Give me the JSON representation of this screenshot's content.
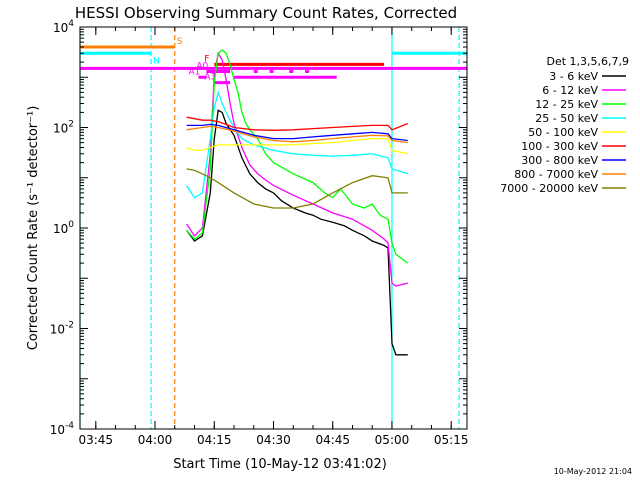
{
  "chart_data": {
    "type": "line",
    "title": "HESSI Observing Summary Count Rates, Corrected",
    "xlabel": "Start Time (10-May-12 03:41:02)",
    "ylabel": "Corrected Count Rate (s⁻¹ detector⁻¹)",
    "y_scale": "log",
    "ylim": [
      0.0001,
      10000
    ],
    "xlim": [
      "03:41",
      "05:19"
    ],
    "x_ticks": [
      "03:45",
      "04:00",
      "04:15",
      "04:30",
      "04:45",
      "05:00",
      "05:15"
    ],
    "y_ticks": [
      {
        "value": 0.0001,
        "base": "10",
        "exp": "-4"
      },
      {
        "value": 0.01,
        "base": "10",
        "exp": "-2"
      },
      {
        "value": 1,
        "base": "10",
        "exp": "0"
      },
      {
        "value": 100,
        "base": "10",
        "exp": "2"
      },
      {
        "value": 10000,
        "base": "10",
        "exp": "4"
      }
    ],
    "grid": false,
    "legend_position": "right",
    "legend_title": "Det 1,3,5,6,7,9",
    "series": [
      {
        "name": "3 - 6 keV",
        "color": "#000000",
        "points": [
          [
            "04:08",
            0.9
          ],
          [
            "04:10",
            0.55
          ],
          [
            "04:12",
            0.7
          ],
          [
            "04:14",
            5
          ],
          [
            "04:15",
            60
          ],
          [
            "04:16",
            220
          ],
          [
            "04:17",
            200
          ],
          [
            "04:18",
            120
          ],
          [
            "04:20",
            70
          ],
          [
            "04:22",
            25
          ],
          [
            "04:24",
            12
          ],
          [
            "04:26",
            8
          ],
          [
            "04:28",
            6
          ],
          [
            "04:30",
            5
          ],
          [
            "04:32",
            3.5
          ],
          [
            "04:35",
            2.5
          ],
          [
            "04:38",
            2
          ],
          [
            "04:40",
            1.8
          ],
          [
            "04:42",
            1.5
          ],
          [
            "04:45",
            1.3
          ],
          [
            "04:48",
            1.1
          ],
          [
            "04:50",
            0.9
          ],
          [
            "04:53",
            0.7
          ],
          [
            "04:55",
            0.55
          ],
          [
            "04:58",
            0.45
          ],
          [
            "04:59",
            0.4
          ],
          [
            "05:00",
            0.005
          ],
          [
            "05:01",
            0.003
          ],
          [
            "05:04",
            0.003
          ]
        ]
      },
      {
        "name": "6 - 12 keV",
        "color": "#ff00ff",
        "points": [
          [
            "04:08",
            1.2
          ],
          [
            "04:10",
            0.7
          ],
          [
            "04:12",
            1
          ],
          [
            "04:14",
            30
          ],
          [
            "04:15",
            1200
          ],
          [
            "04:16",
            3000
          ],
          [
            "04:17",
            2200
          ],
          [
            "04:18",
            900
          ],
          [
            "04:19",
            300
          ],
          [
            "04:20",
            120
          ],
          [
            "04:22",
            40
          ],
          [
            "04:24",
            18
          ],
          [
            "04:26",
            12
          ],
          [
            "04:28",
            9
          ],
          [
            "04:30",
            7
          ],
          [
            "04:35",
            4.5
          ],
          [
            "04:40",
            3
          ],
          [
            "04:45",
            2
          ],
          [
            "04:50",
            1.5
          ],
          [
            "04:55",
            0.9
          ],
          [
            "04:58",
            0.6
          ],
          [
            "04:59",
            0.5
          ],
          [
            "05:00",
            0.08
          ],
          [
            "05:01",
            0.07
          ],
          [
            "05:04",
            0.08
          ]
        ]
      },
      {
        "name": "12 - 25 keV",
        "color": "#00ff00",
        "points": [
          [
            "04:08",
            0.9
          ],
          [
            "04:10",
            0.6
          ],
          [
            "04:12",
            0.8
          ],
          [
            "04:14",
            15
          ],
          [
            "04:15",
            800
          ],
          [
            "04:16",
            3000
          ],
          [
            "04:17",
            3500
          ],
          [
            "04:18",
            3000
          ],
          [
            "04:19",
            1800
          ],
          [
            "04:20",
            900
          ],
          [
            "04:21",
            500
          ],
          [
            "04:22",
            200
          ],
          [
            "04:23",
            120
          ],
          [
            "04:24",
            90
          ],
          [
            "04:26",
            60
          ],
          [
            "04:28",
            30
          ],
          [
            "04:30",
            20
          ],
          [
            "04:35",
            12
          ],
          [
            "04:40",
            8
          ],
          [
            "04:43",
            5
          ],
          [
            "04:45",
            4
          ],
          [
            "04:47",
            6
          ],
          [
            "04:50",
            3
          ],
          [
            "04:53",
            2.5
          ],
          [
            "04:55",
            3
          ],
          [
            "04:57",
            1.8
          ],
          [
            "04:59",
            1.5
          ],
          [
            "05:00",
            0.5
          ],
          [
            "05:01",
            0.3
          ],
          [
            "05:04",
            0.2
          ]
        ]
      },
      {
        "name": "25 - 50 keV",
        "color": "#00ffff",
        "points": [
          [
            "04:08",
            7
          ],
          [
            "04:10",
            4
          ],
          [
            "04:12",
            5
          ],
          [
            "04:14",
            60
          ],
          [
            "04:15",
            250
          ],
          [
            "04:16",
            500
          ],
          [
            "04:17",
            300
          ],
          [
            "04:18",
            200
          ],
          [
            "04:20",
            100
          ],
          [
            "04:22",
            60
          ],
          [
            "04:25",
            45
          ],
          [
            "04:30",
            35
          ],
          [
            "04:35",
            30
          ],
          [
            "04:40",
            28
          ],
          [
            "04:45",
            27
          ],
          [
            "04:50",
            28
          ],
          [
            "04:55",
            30
          ],
          [
            "04:59",
            25
          ],
          [
            "05:00",
            15
          ],
          [
            "05:04",
            12
          ]
        ]
      },
      {
        "name": "50 - 100 keV",
        "color": "#ffff00",
        "points": [
          [
            "04:08",
            40
          ],
          [
            "04:10",
            35
          ],
          [
            "04:12",
            35
          ],
          [
            "04:14",
            40
          ],
          [
            "04:16",
            45
          ],
          [
            "04:20",
            45
          ],
          [
            "04:25",
            45
          ],
          [
            "04:30",
            45
          ],
          [
            "04:35",
            45
          ],
          [
            "04:40",
            48
          ],
          [
            "04:45",
            50
          ],
          [
            "04:50",
            55
          ],
          [
            "04:55",
            60
          ],
          [
            "04:59",
            60
          ],
          [
            "05:00",
            35
          ],
          [
            "05:04",
            30
          ]
        ]
      },
      {
        "name": "100 - 300 keV",
        "color": "#ff0000",
        "points": [
          [
            "04:08",
            160
          ],
          [
            "04:10",
            150
          ],
          [
            "04:12",
            140
          ],
          [
            "04:14",
            140
          ],
          [
            "04:16",
            130
          ],
          [
            "04:18",
            115
          ],
          [
            "04:20",
            100
          ],
          [
            "04:25",
            90
          ],
          [
            "04:30",
            88
          ],
          [
            "04:35",
            90
          ],
          [
            "04:40",
            95
          ],
          [
            "04:45",
            100
          ],
          [
            "04:50",
            105
          ],
          [
            "04:55",
            110
          ],
          [
            "04:59",
            110
          ],
          [
            "05:00",
            90
          ],
          [
            "05:04",
            120
          ]
        ]
      },
      {
        "name": "300 - 800 keV",
        "color": "#0000ff",
        "points": [
          [
            "04:08",
            110
          ],
          [
            "04:10",
            110
          ],
          [
            "04:12",
            110
          ],
          [
            "04:14",
            115
          ],
          [
            "04:16",
            110
          ],
          [
            "04:20",
            90
          ],
          [
            "04:25",
            70
          ],
          [
            "04:30",
            60
          ],
          [
            "04:35",
            60
          ],
          [
            "04:40",
            65
          ],
          [
            "04:45",
            70
          ],
          [
            "04:50",
            75
          ],
          [
            "04:55",
            80
          ],
          [
            "04:59",
            75
          ],
          [
            "05:00",
            60
          ],
          [
            "05:04",
            55
          ]
        ]
      },
      {
        "name": "800 - 7000 keV",
        "color": "#ff8000",
        "points": [
          [
            "04:08",
            90
          ],
          [
            "04:10",
            95
          ],
          [
            "04:12",
            100
          ],
          [
            "04:14",
            105
          ],
          [
            "04:16",
            100
          ],
          [
            "04:20",
            85
          ],
          [
            "04:25",
            65
          ],
          [
            "04:30",
            55
          ],
          [
            "04:35",
            52
          ],
          [
            "04:40",
            55
          ],
          [
            "04:45",
            60
          ],
          [
            "04:50",
            65
          ],
          [
            "04:55",
            70
          ],
          [
            "04:59",
            68
          ],
          [
            "05:00",
            55
          ],
          [
            "05:04",
            50
          ]
        ]
      },
      {
        "name": "7000 - 20000 keV",
        "color": "#808000",
        "points": [
          [
            "04:08",
            15
          ],
          [
            "04:10",
            14
          ],
          [
            "04:12",
            12
          ],
          [
            "04:14",
            10
          ],
          [
            "04:16",
            8
          ],
          [
            "04:20",
            5
          ],
          [
            "04:25",
            3
          ],
          [
            "04:30",
            2.5
          ],
          [
            "04:35",
            2.5
          ],
          [
            "04:40",
            3
          ],
          [
            "04:45",
            5
          ],
          [
            "04:50",
            8
          ],
          [
            "04:55",
            11
          ],
          [
            "04:59",
            10
          ],
          [
            "05:00",
            5
          ],
          [
            "05:04",
            5
          ]
        ]
      }
    ],
    "flags": [
      {
        "label": "S",
        "color": "#ff8000",
        "y": 4000,
        "segments": [
          [
            "03:41",
            "04:05"
          ]
        ]
      },
      {
        "label": "N",
        "color": "#00ffff",
        "y": 3000,
        "segments": [
          [
            "03:41",
            "03:59"
          ],
          [
            "05:00",
            "05:19"
          ]
        ]
      },
      {
        "label": "F",
        "color": "#ff0000",
        "y": 1800,
        "segments": [
          [
            "04:15",
            "04:58"
          ]
        ]
      },
      {
        "label": "",
        "color": "#ff00ff",
        "y": 1500,
        "segments": [
          [
            "03:41",
            "05:19"
          ]
        ]
      },
      {
        "label": "A0",
        "color": "#ff00ff",
        "y": 1300,
        "segments": [
          [
            "04:13",
            "04:19"
          ],
          [
            "04:25",
            "04:26"
          ],
          [
            "04:29",
            "04:30"
          ],
          [
            "04:34",
            "04:35"
          ],
          [
            "04:38",
            "04:39"
          ]
        ]
      },
      {
        "label": "A1",
        "color": "#ff00ff",
        "y": 1000,
        "segments": [
          [
            "04:11",
            "04:13"
          ],
          [
            "04:20",
            "04:46"
          ]
        ]
      },
      {
        "label": "A3",
        "color": "#ff00ff",
        "y": 780,
        "segments": [
          [
            "04:15",
            "04:19"
          ]
        ]
      }
    ],
    "vertical_lines": [
      {
        "x": "03:41",
        "color": "#00ffff",
        "style": "solid"
      },
      {
        "x": "03:59",
        "color": "#00ffff",
        "style": "dashed"
      },
      {
        "x": "04:05",
        "color": "#ff8000",
        "style": "dashed"
      },
      {
        "x": "05:00",
        "color": "#00ffff",
        "style": "solid"
      },
      {
        "x": "05:17",
        "color": "#00ffff",
        "style": "dashed"
      }
    ],
    "footer_timestamp": "10-May-2012 21:04"
  }
}
